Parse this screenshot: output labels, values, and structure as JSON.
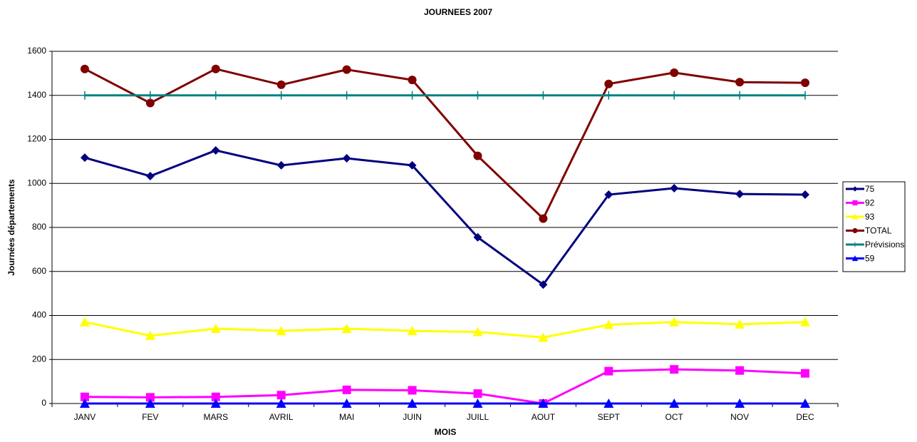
{
  "chart_data": {
    "type": "line",
    "title": "JOURNEES 2007",
    "xlabel": "MOIS",
    "ylabel": "Journées départements",
    "categories": [
      "JANV",
      "FEV",
      "MARS",
      "AVRIL",
      "MAI",
      "JUIN",
      "JUILL",
      "AOUT",
      "SEPT",
      "OCT",
      "NOV",
      "DEC"
    ],
    "series": [
      {
        "name": "75",
        "color": "#000080",
        "marker": "diamond",
        "values": [
          1117,
          1033,
          1150,
          1082,
          1114,
          1082,
          755,
          540,
          949,
          978,
          952,
          949
        ]
      },
      {
        "name": "92",
        "color": "#ff00ff",
        "marker": "square",
        "values": [
          30,
          28,
          30,
          38,
          62,
          60,
          45,
          0,
          147,
          155,
          150,
          137
        ]
      },
      {
        "name": "93",
        "color": "#ffff00",
        "marker": "triangle",
        "values": [
          370,
          308,
          340,
          330,
          340,
          330,
          325,
          300,
          358,
          370,
          360,
          370
        ]
      },
      {
        "name": "TOTAL",
        "color": "#800000",
        "marker": "circle",
        "values": [
          1520,
          1365,
          1520,
          1448,
          1517,
          1470,
          1125,
          840,
          1452,
          1503,
          1460,
          1457
        ]
      },
      {
        "name": "Prévisions",
        "color": "#008080",
        "marker": "plus",
        "values": [
          1400,
          1400,
          1400,
          1400,
          1400,
          1400,
          1400,
          1400,
          1400,
          1400,
          1400,
          1400
        ]
      },
      {
        "name": "59",
        "color": "#0000ff",
        "marker": "triangle",
        "values": [
          0,
          0,
          0,
          0,
          0,
          0,
          0,
          0,
          0,
          0,
          0,
          0
        ]
      }
    ],
    "ylim": [
      0,
      1600
    ],
    "yticks": [
      0,
      200,
      400,
      600,
      800,
      1000,
      1200,
      1400,
      1600
    ],
    "grid": true,
    "legend": "right"
  }
}
